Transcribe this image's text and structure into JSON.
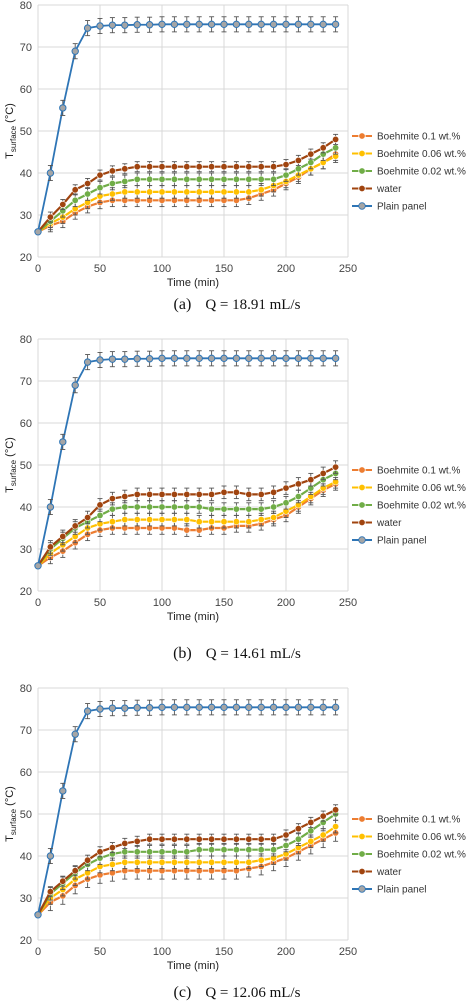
{
  "colors": {
    "boehmite_01": "#ED7D31",
    "boehmite_006": "#FFC000",
    "boehmite_002": "#70AD47",
    "water": "#A0440F",
    "plain_panel_line": "#2E75B6",
    "plain_panel_marker": "#A5A5A5"
  },
  "chart_data": [
    {
      "type": "line",
      "title": "",
      "caption_letter": "(a)",
      "caption_text": "Q = 18.91 mL/s",
      "xlabel": "Time (min)",
      "ylabel_main": "T",
      "ylabel_sub": "surface",
      "ylabel_unit": " (°C)",
      "xlim": [
        0,
        250
      ],
      "ylim": [
        20,
        80
      ],
      "xticks": [
        0,
        50,
        100,
        150,
        200,
        250
      ],
      "yticks": [
        20,
        30,
        40,
        50,
        60,
        70,
        80
      ],
      "grid": true,
      "legend_position": "right",
      "error_bars": true,
      "x": [
        0,
        10,
        20,
        30,
        40,
        50,
        60,
        70,
        80,
        90,
        100,
        110,
        120,
        130,
        140,
        150,
        160,
        170,
        180,
        190,
        200,
        210,
        220,
        230,
        240
      ],
      "series": [
        {
          "name": "Boehmite 0.1 wt.%",
          "color_key": "boehmite_01",
          "error": 1.5,
          "values": [
            26,
            27.5,
            28.5,
            30.5,
            32,
            33,
            33.5,
            33.5,
            33.5,
            33.5,
            33.5,
            33.5,
            33.5,
            33.5,
            33.5,
            33.5,
            33.5,
            34,
            35,
            36,
            37.5,
            39,
            41,
            42.5,
            44.5
          ]
        },
        {
          "name": "Boehmite 0.06 wt.%",
          "color_key": "boehmite_006",
          "error": 1.5,
          "values": [
            26,
            28,
            29.5,
            31.5,
            33,
            34.5,
            35,
            35.5,
            35.5,
            35.5,
            35.5,
            35.5,
            35.5,
            35.5,
            35.5,
            35.5,
            35.5,
            35.5,
            36,
            37,
            38,
            39.5,
            41,
            42.5,
            44
          ]
        },
        {
          "name": "Boehmite 0.02 wt.%",
          "color_key": "boehmite_002",
          "error": 1.5,
          "values": [
            26,
            28.5,
            31,
            33.5,
            35,
            36.5,
            37.5,
            38,
            38.5,
            38.5,
            38.5,
            38.5,
            38.5,
            38.5,
            38.5,
            38.5,
            38.5,
            38.5,
            38.5,
            38.5,
            39.5,
            41,
            42.5,
            44.5,
            46
          ]
        },
        {
          "name": "water",
          "color_key": "water",
          "error": 1.2,
          "values": [
            26,
            29.5,
            32.5,
            36,
            37.5,
            39.5,
            40.5,
            41,
            41.5,
            41.5,
            41.5,
            41.5,
            41.5,
            41.5,
            41.5,
            41.5,
            41.5,
            41.5,
            41.5,
            41.5,
            42,
            43,
            44.5,
            46,
            48
          ]
        },
        {
          "name": "Plain panel",
          "color_key": "plain_panel_line",
          "error": 1.8,
          "x": [
            0,
            10,
            20,
            30,
            40,
            50,
            60,
            70,
            80,
            90,
            100,
            110,
            120,
            130,
            140,
            150,
            160,
            170,
            180,
            190,
            200,
            210,
            220,
            230,
            240
          ],
          "values": [
            26,
            40,
            55.5,
            69,
            74.5,
            75,
            75.2,
            75.2,
            75.3,
            75.3,
            75.4,
            75.4,
            75.4,
            75.4,
            75.4,
            75.4,
            75.4,
            75.4,
            75.4,
            75.4,
            75.4,
            75.4,
            75.4,
            75.4,
            75.4
          ]
        }
      ]
    },
    {
      "type": "line",
      "title": "",
      "caption_letter": "(b)",
      "caption_text": "Q = 14.61 mL/s",
      "xlabel": "Time (min)",
      "ylabel_main": "T",
      "ylabel_sub": "surface",
      "ylabel_unit": " (°C)",
      "xlim": [
        0,
        250
      ],
      "ylim": [
        20,
        80
      ],
      "xticks": [
        0,
        50,
        100,
        150,
        200,
        250
      ],
      "yticks": [
        20,
        30,
        40,
        50,
        60,
        70,
        80
      ],
      "grid": true,
      "legend_position": "right",
      "error_bars": true,
      "x": [
        0,
        10,
        20,
        30,
        40,
        50,
        60,
        70,
        80,
        90,
        100,
        110,
        120,
        130,
        140,
        150,
        160,
        170,
        180,
        190,
        200,
        210,
        220,
        230,
        240
      ],
      "series": [
        {
          "name": "Boehmite 0.1 wt.%",
          "color_key": "boehmite_01",
          "error": 1.5,
          "values": [
            26,
            28,
            29.5,
            31.5,
            33.5,
            34.5,
            35,
            35,
            35,
            35,
            35,
            35,
            34.5,
            34.5,
            35,
            35,
            35.5,
            35.5,
            36,
            37,
            38,
            40,
            42,
            44,
            45.5
          ]
        },
        {
          "name": "Boehmite 0.06 wt.%",
          "color_key": "boehmite_006",
          "error": 1.5,
          "values": [
            26,
            29,
            31,
            33,
            35,
            36,
            36.5,
            37,
            37,
            37,
            37,
            37,
            37,
            36.5,
            36.5,
            36.5,
            36.5,
            36.5,
            37,
            37.5,
            39,
            40.5,
            42.5,
            44.5,
            46
          ]
        },
        {
          "name": "Boehmite 0.02 wt.%",
          "color_key": "boehmite_002",
          "error": 1.5,
          "values": [
            26,
            30,
            32.5,
            35,
            36.5,
            38,
            39.5,
            40,
            40,
            40,
            40,
            40,
            40,
            40,
            39.5,
            39.5,
            39.5,
            39.5,
            39.5,
            40,
            41,
            42.5,
            44.5,
            46.5,
            48
          ]
        },
        {
          "name": "water",
          "color_key": "water",
          "error": 1.5,
          "values": [
            26,
            30.5,
            33,
            35.5,
            37.5,
            40.5,
            42,
            42.5,
            43,
            43,
            43,
            43,
            43,
            43,
            43,
            43.5,
            43.5,
            43,
            43,
            43.5,
            44.5,
            45.5,
            46.5,
            48,
            49.5
          ]
        },
        {
          "name": "Plain panel",
          "color_key": "plain_panel_line",
          "error": 1.8,
          "values": [
            26,
            40,
            55.5,
            69,
            74.5,
            75,
            75.2,
            75.2,
            75.3,
            75.3,
            75.4,
            75.4,
            75.4,
            75.4,
            75.4,
            75.4,
            75.4,
            75.4,
            75.4,
            75.4,
            75.4,
            75.4,
            75.4,
            75.4,
            75.4
          ]
        }
      ]
    },
    {
      "type": "line",
      "title": "",
      "caption_letter": "(c)",
      "caption_text": "Q = 12.06 mL/s",
      "xlabel": "Time (min)",
      "ylabel_main": "T",
      "ylabel_sub": "surface",
      "ylabel_unit": " (°C)",
      "xlim": [
        0,
        250
      ],
      "ylim": [
        20,
        80
      ],
      "xticks": [
        0,
        50,
        100,
        150,
        200,
        250
      ],
      "yticks": [
        20,
        30,
        40,
        50,
        60,
        70,
        80
      ],
      "grid": true,
      "legend_position": "right",
      "error_bars": true,
      "x": [
        0,
        10,
        20,
        30,
        40,
        50,
        60,
        70,
        80,
        90,
        100,
        110,
        120,
        130,
        140,
        150,
        160,
        170,
        180,
        190,
        200,
        210,
        220,
        230,
        240
      ],
      "series": [
        {
          "name": "Boehmite 0.1 wt.%",
          "color_key": "boehmite_01",
          "error": 2,
          "values": [
            26,
            29,
            30.5,
            33,
            34.5,
            35.5,
            36,
            36.5,
            36.5,
            36.5,
            36.5,
            36.5,
            36.5,
            36.5,
            36.5,
            36.5,
            36.5,
            37,
            37.5,
            38.5,
            39.5,
            41,
            42.5,
            44,
            45.5
          ]
        },
        {
          "name": "Boehmite 0.06 wt.%",
          "color_key": "boehmite_006",
          "error": 1.5,
          "values": [
            26,
            30,
            32,
            34.5,
            36,
            37.5,
            38,
            38.5,
            38.5,
            38.5,
            38.5,
            38.5,
            38.5,
            38.5,
            38.5,
            38.5,
            38.5,
            38.5,
            39,
            39.5,
            40.5,
            42,
            43.5,
            45,
            47
          ]
        },
        {
          "name": "Boehmite 0.02 wt.%",
          "color_key": "boehmite_002",
          "error": 1.5,
          "values": [
            26,
            31,
            33.5,
            36,
            38,
            39.5,
            40.5,
            41,
            41,
            41,
            41,
            41,
            41,
            41.5,
            41.5,
            41.5,
            41.5,
            41.5,
            41.5,
            41.5,
            42.5,
            44,
            46,
            48,
            50
          ]
        },
        {
          "name": "water",
          "color_key": "water",
          "error": 1.2,
          "values": [
            26,
            31.5,
            34,
            36.5,
            39,
            41,
            42,
            43,
            43.5,
            44,
            44,
            44,
            44,
            44,
            44,
            44,
            44,
            44,
            44,
            44,
            45,
            46.5,
            48,
            49.5,
            51
          ]
        },
        {
          "name": "Plain panel",
          "color_key": "plain_panel_line",
          "error": 1.8,
          "values": [
            26,
            40,
            55.5,
            69,
            74.5,
            75,
            75.2,
            75.2,
            75.3,
            75.3,
            75.4,
            75.4,
            75.4,
            75.4,
            75.4,
            75.4,
            75.4,
            75.4,
            75.4,
            75.4,
            75.4,
            75.4,
            75.4,
            75.4,
            75.4
          ]
        }
      ]
    }
  ]
}
